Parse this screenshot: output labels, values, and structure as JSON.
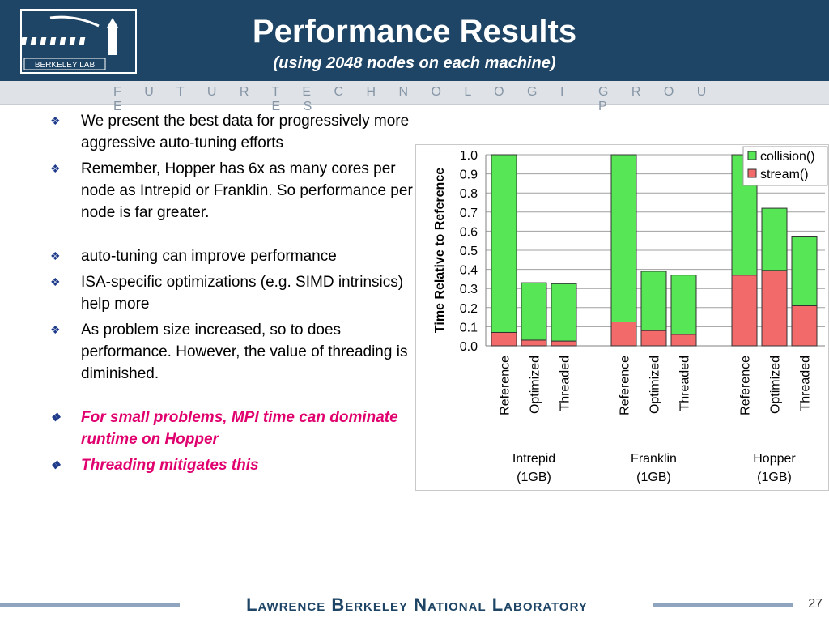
{
  "header": {
    "title": "Performance Results",
    "subtitle": "(using 2048 nodes on each machine)",
    "logo_text": "BERKELEY LAB",
    "band_words": [
      "F U T U R E",
      "T E C H N O L O G I E S",
      "G R O U P"
    ]
  },
  "bullets": [
    {
      "text": "We present the best data for progressively more aggressive auto-tuning efforts",
      "style": "normal"
    },
    {
      "text": "Remember, Hopper has 6x as many cores per node as Intrepid or Franklin. So performance per node is far greater.",
      "style": "normal"
    },
    {
      "text": "auto-tuning can improve performance",
      "style": "normal"
    },
    {
      "text": "ISA-specific optimizations (e.g. SIMD intrinsics) help more",
      "style": "normal"
    },
    {
      "text": "As problem size increased, so to does performance.  However, the value of threading is diminished.",
      "style": "normal"
    },
    {
      "text": "For small problems, MPI time can dominate runtime on Hopper",
      "style": "red"
    },
    {
      "text": "Threading mitigates this",
      "style": "red"
    }
  ],
  "bullet_symbol": "❖",
  "footer": {
    "lab_name": "Lawrence Berkeley National Laboratory",
    "page_number": "27"
  },
  "colors": {
    "header_bg": "#1e4566",
    "collision": "#56e656",
    "stream": "#f26a6a",
    "red_text": "#e0006e"
  },
  "chart_data": {
    "type": "bar",
    "stacked": true,
    "ylabel": "Time Relative to Reference",
    "ylim": [
      0,
      1.0
    ],
    "yticks": [
      "0.0",
      "0.1",
      "0.2",
      "0.3",
      "0.4",
      "0.5",
      "0.6",
      "0.7",
      "0.8",
      "0.9",
      "1.0"
    ],
    "grid": true,
    "legend_position": "top-right",
    "groups": [
      {
        "name": "Intrepid",
        "sub": "(1GB)",
        "categories": [
          "Reference",
          "Optimized",
          "Threaded"
        ]
      },
      {
        "name": "Franklin",
        "sub": "(1GB)",
        "categories": [
          "Reference",
          "Optimized",
          "Threaded"
        ]
      },
      {
        "name": "Hopper",
        "sub": "(1GB)",
        "categories": [
          "Reference",
          "Optimized",
          "Threaded"
        ]
      }
    ],
    "series": [
      {
        "name": "stream()",
        "color": "#f26a6a",
        "values": [
          0.07,
          0.03,
          0.025,
          0.125,
          0.08,
          0.06,
          0.37,
          0.395,
          0.21
        ]
      },
      {
        "name": "collision()",
        "color": "#56e656",
        "values": [
          0.93,
          0.3,
          0.3,
          0.875,
          0.31,
          0.31,
          0.63,
          0.325,
          0.36
        ]
      }
    ],
    "legend": [
      "collision()",
      "stream()"
    ]
  }
}
